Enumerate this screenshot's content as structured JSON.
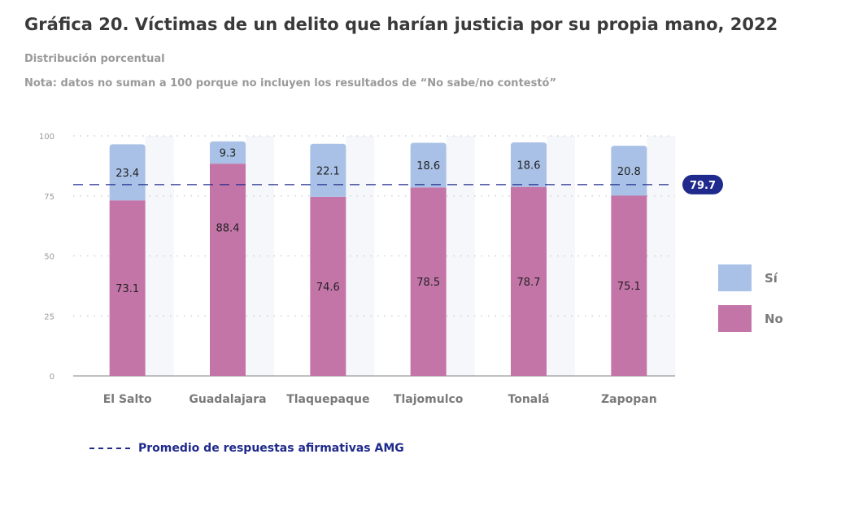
{
  "title": "Gráfica 20. Víctimas de un delito que harían justicia por su propia mano, 2022",
  "subtitle": "Distribución porcentual",
  "note": "Nota: datos no suman a 100 porque no incluyen los resultados de “No sabe/no contestó”",
  "average_legend": "Promedio  de respuestas afirmativas AMG",
  "colors": {
    "si": "#a9c1e6",
    "no": "#c475a8",
    "average": "#1f2a8c",
    "grid": "#c8c8c8",
    "band": "#f6f7fa"
  },
  "chart_data": {
    "type": "bar",
    "stacked": true,
    "categories": [
      "El Salto",
      "Guadalajara",
      "Tlaquepaque",
      "Tlajomulco",
      "Tonalá",
      "Zapopan"
    ],
    "series": [
      {
        "name": "No",
        "values": [
          73.1,
          88.4,
          74.6,
          78.5,
          78.7,
          75.1
        ]
      },
      {
        "name": "Sí",
        "values": [
          23.4,
          9.3,
          22.1,
          18.6,
          18.6,
          20.8
        ]
      }
    ],
    "ylim": [
      0,
      100
    ],
    "yticks": [
      0,
      25,
      50,
      75,
      100
    ],
    "average": {
      "value": 79.7,
      "label": "79.7"
    },
    "legend": [
      "Sí",
      "No"
    ],
    "legend_position": "right",
    "grid": true
  }
}
